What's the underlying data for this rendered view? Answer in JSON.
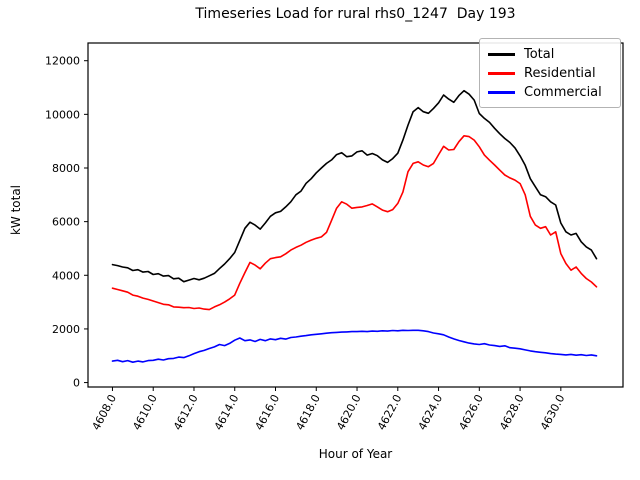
{
  "chart_data": {
    "type": "line",
    "title": "Timeseries Load for rural rhs0_1247  Day 193",
    "xlabel": "Hour of Year",
    "ylabel": "kW total",
    "grid": false,
    "legend_position": "upper right",
    "x_start": 4608.0,
    "x_step": 0.25,
    "xlim": [
      4606.8,
      4633.05
    ],
    "ylim": [
      -165,
      12660
    ],
    "x_ticks": [
      4608,
      4610,
      4612,
      4614,
      4616,
      4618,
      4620,
      4622,
      4624,
      4626,
      4628,
      4630
    ],
    "x_tick_labels": [
      "4608.0",
      "4610.0",
      "4612.0",
      "4614.0",
      "4616.0",
      "4618.0",
      "4620.0",
      "4622.0",
      "4624.0",
      "4626.0",
      "4628.0",
      "4630.0"
    ],
    "y_ticks": [
      0,
      2000,
      4000,
      6000,
      8000,
      10000,
      12000
    ],
    "y_tick_labels": [
      "0",
      "2000",
      "4000",
      "6000",
      "8000",
      "10000",
      "12000"
    ],
    "series": [
      {
        "name": "Total",
        "color": "#000000",
        "values": [
          4400,
          4360,
          4310,
          4280,
          4180,
          4210,
          4120,
          4140,
          4030,
          4060,
          3970,
          3990,
          3870,
          3890,
          3760,
          3820,
          3880,
          3830,
          3890,
          3980,
          4070,
          4250,
          4420,
          4620,
          4850,
          5300,
          5750,
          5980,
          5870,
          5720,
          5950,
          6200,
          6330,
          6380,
          6550,
          6740,
          7000,
          7140,
          7430,
          7600,
          7820,
          8000,
          8170,
          8300,
          8500,
          8570,
          8420,
          8450,
          8600,
          8640,
          8480,
          8540,
          8460,
          8300,
          8210,
          8350,
          8550,
          9040,
          9600,
          10100,
          10250,
          10100,
          10040,
          10220,
          10430,
          10720,
          10570,
          10450,
          10700,
          10880,
          10750,
          10530,
          10030,
          9850,
          9700,
          9480,
          9280,
          9100,
          8950,
          8750,
          8450,
          8100,
          7600,
          7300,
          7000,
          6930,
          6740,
          6620,
          5950,
          5620,
          5500,
          5560,
          5250,
          5060,
          4940,
          4620
        ]
      },
      {
        "name": "Residential",
        "color": "#ff0000",
        "values": [
          3520,
          3470,
          3420,
          3370,
          3260,
          3220,
          3150,
          3100,
          3040,
          2980,
          2920,
          2900,
          2820,
          2810,
          2790,
          2800,
          2760,
          2780,
          2740,
          2720,
          2820,
          2900,
          3000,
          3120,
          3260,
          3700,
          4100,
          4480,
          4380,
          4240,
          4450,
          4620,
          4660,
          4690,
          4800,
          4940,
          5040,
          5120,
          5230,
          5310,
          5380,
          5430,
          5600,
          6050,
          6500,
          6740,
          6650,
          6500,
          6530,
          6550,
          6600,
          6660,
          6550,
          6430,
          6370,
          6450,
          6680,
          7100,
          7860,
          8170,
          8230,
          8110,
          8050,
          8170,
          8500,
          8810,
          8670,
          8690,
          8980,
          9200,
          9170,
          9040,
          8790,
          8480,
          8290,
          8110,
          7920,
          7740,
          7630,
          7550,
          7420,
          7000,
          6200,
          5870,
          5750,
          5810,
          5500,
          5620,
          4810,
          4440,
          4190,
          4310,
          4070,
          3880,
          3750,
          3570
        ]
      },
      {
        "name": "Commercial",
        "color": "#0000ff",
        "values": [
          800,
          830,
          780,
          820,
          760,
          800,
          770,
          820,
          830,
          870,
          840,
          890,
          900,
          950,
          930,
          1000,
          1080,
          1150,
          1200,
          1270,
          1330,
          1420,
          1380,
          1460,
          1580,
          1660,
          1560,
          1590,
          1530,
          1610,
          1560,
          1630,
          1600,
          1650,
          1620,
          1680,
          1700,
          1730,
          1750,
          1780,
          1800,
          1820,
          1840,
          1860,
          1870,
          1880,
          1890,
          1900,
          1900,
          1910,
          1900,
          1920,
          1910,
          1930,
          1920,
          1940,
          1930,
          1950,
          1940,
          1950,
          1950,
          1930,
          1900,
          1850,
          1820,
          1780,
          1700,
          1630,
          1570,
          1520,
          1470,
          1440,
          1420,
          1450,
          1400,
          1380,
          1350,
          1370,
          1300,
          1280,
          1260,
          1220,
          1180,
          1150,
          1130,
          1110,
          1080,
          1060,
          1050,
          1030,
          1050,
          1020,
          1040,
          1010,
          1030,
          1000
        ]
      }
    ]
  }
}
